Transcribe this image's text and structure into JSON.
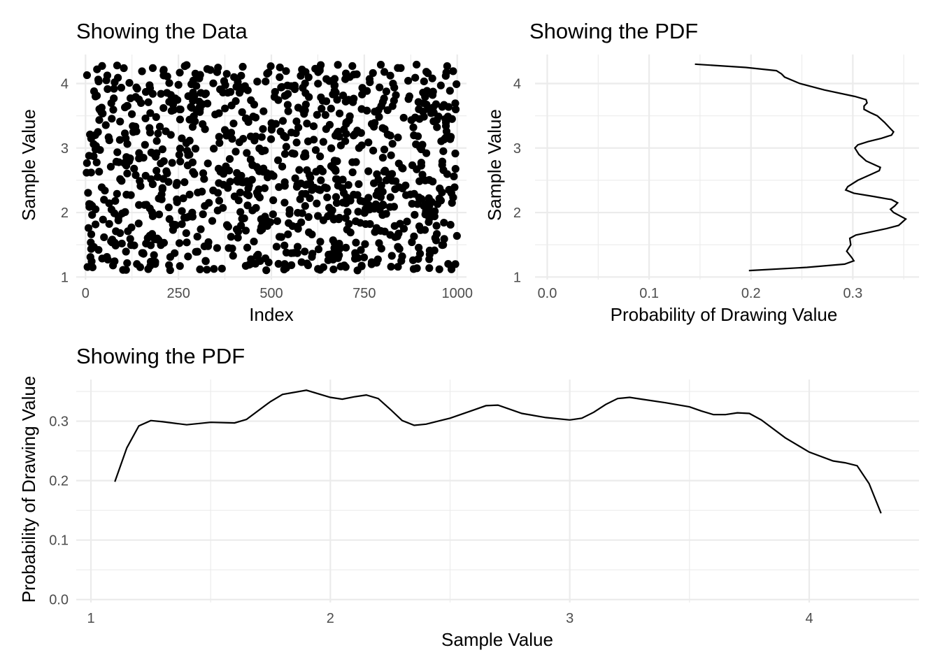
{
  "chart_data": [
    {
      "type": "scatter",
      "title": "Showing the Data",
      "xlabel": "Index",
      "ylabel": "Sample Value",
      "xlim": [
        -25,
        1025
      ],
      "ylim": [
        0.96,
        4.45
      ],
      "x_ticks": [
        0,
        250,
        500,
        750,
        1000
      ],
      "y_ticks": [
        1,
        2,
        3,
        4
      ],
      "point_count": 1000,
      "distribution": "uniform sample values between 1.1 and 4.3 plotted against index 1 to 1000",
      "points": [
        [
          4,
          4.13
        ],
        [
          8,
          1.76
        ],
        [
          12,
          3.21
        ],
        [
          15,
          2.62
        ],
        [
          19,
          1.15
        ],
        [
          23,
          3.88
        ],
        [
          27,
          2.05
        ],
        [
          31,
          4.22
        ],
        [
          35,
          1.42
        ],
        [
          39,
          2.97
        ],
        [
          43,
          3.55
        ],
        [
          47,
          1.89
        ],
        [
          52,
          2.34
        ],
        [
          56,
          4.05
        ],
        [
          60,
          1.27
        ],
        [
          64,
          3.12
        ],
        [
          68,
          2.71
        ],
        [
          72,
          1.58
        ],
        [
          76,
          3.77
        ],
        [
          80,
          2.18
        ],
        [
          85,
          4.28
        ],
        [
          89,
          1.93
        ],
        [
          93,
          3.41
        ],
        [
          97,
          2.49
        ],
        [
          101,
          1.11
        ],
        [
          106,
          3.63
        ],
        [
          110,
          2.86
        ],
        [
          114,
          1.71
        ],
        [
          118,
          4.01
        ],
        [
          122,
          2.27
        ],
        [
          127,
          3.34
        ],
        [
          131,
          1.49
        ],
        [
          135,
          2.58
        ],
        [
          139,
          3.92
        ],
        [
          143,
          1.83
        ],
        [
          148,
          2.41
        ],
        [
          152,
          4.19
        ],
        [
          156,
          1.36
        ],
        [
          160,
          3.05
        ],
        [
          164,
          2.12
        ],
        [
          169,
          3.71
        ],
        [
          173,
          1.64
        ],
        [
          177,
          2.93
        ],
        [
          181,
          4.24
        ],
        [
          186,
          1.22
        ],
        [
          190,
          3.48
        ],
        [
          194,
          2.55
        ],
        [
          198,
          1.97
        ],
        [
          203,
          3.84
        ],
        [
          207,
          2.38
        ],
        [
          211,
          1.53
        ],
        [
          216,
          3.26
        ],
        [
          220,
          4.11
        ],
        [
          224,
          2.08
        ],
        [
          228,
          1.31
        ],
        [
          233,
          2.77
        ],
        [
          237,
          3.59
        ],
        [
          241,
          1.81
        ],
        [
          246,
          2.46
        ],
        [
          250,
          3.98
        ],
        [
          254,
          1.17
        ],
        [
          259,
          3.15
        ],
        [
          263,
          2.22
        ],
        [
          267,
          4.27
        ],
        [
          271,
          1.68
        ],
        [
          276,
          2.89
        ],
        [
          280,
          3.44
        ],
        [
          284,
          1.95
        ],
        [
          289,
          2.63
        ],
        [
          293,
          3.81
        ],
        [
          297,
          1.39
        ],
        [
          302,
          2.31
        ],
        [
          306,
          4.08
        ],
        [
          310,
          1.74
        ],
        [
          315,
          3.37
        ],
        [
          319,
          2.52
        ],
        [
          323,
          1.25
        ],
        [
          328,
          3.69
        ],
        [
          332,
          2.15
        ],
        [
          336,
          4.21
        ],
        [
          341,
          1.87
        ],
        [
          345,
          2.99
        ],
        [
          349,
          3.52
        ],
        [
          354,
          1.45
        ],
        [
          358,
          2.68
        ],
        [
          362,
          3.91
        ],
        [
          367,
          1.13
        ],
        [
          371,
          2.43
        ],
        [
          375,
          3.28
        ],
        [
          380,
          4.15
        ],
        [
          384,
          1.78
        ],
        [
          388,
          2.83
        ],
        [
          393,
          3.66
        ],
        [
          397,
          1.33
        ],
        [
          401,
          2.25
        ],
        [
          406,
          3.95
        ],
        [
          410,
          1.61
        ],
        [
          414,
          3.09
        ],
        [
          419,
          2.57
        ],
        [
          423,
          4.26
        ],
        [
          427,
          1.91
        ],
        [
          432,
          3.46
        ],
        [
          436,
          2.11
        ],
        [
          440,
          1.19
        ],
        [
          445,
          3.74
        ],
        [
          449,
          2.74
        ],
        [
          453,
          1.55
        ],
        [
          458,
          3.18
        ],
        [
          462,
          4.03
        ],
        [
          466,
          2.36
        ],
        [
          471,
          1.72
        ],
        [
          475,
          2.95
        ],
        [
          479,
          3.57
        ],
        [
          484,
          1.29
        ],
        [
          488,
          2.61
        ],
        [
          492,
          4.17
        ],
        [
          497,
          1.85
        ],
        [
          501,
          3.31
        ],
        [
          505,
          2.19
        ],
        [
          510,
          3.87
        ],
        [
          514,
          1.47
        ],
        [
          518,
          2.81
        ],
        [
          523,
          4.25
        ],
        [
          527,
          1.62
        ],
        [
          531,
          3.42
        ],
        [
          536,
          2.47
        ],
        [
          540,
          1.14
        ],
        [
          544,
          3.67
        ],
        [
          549,
          2.04
        ],
        [
          553,
          3.96
        ],
        [
          557,
          1.79
        ],
        [
          562,
          2.91
        ],
        [
          566,
          3.23
        ],
        [
          570,
          1.37
        ],
        [
          575,
          2.66
        ],
        [
          579,
          4.12
        ],
        [
          583,
          1.99
        ],
        [
          588,
          3.53
        ],
        [
          592,
          2.29
        ],
        [
          596,
          1.21
        ],
        [
          601,
          3.79
        ],
        [
          605,
          2.54
        ],
        [
          609,
          1.66
        ],
        [
          614,
          3.13
        ],
        [
          618,
          4.23
        ],
        [
          622,
          2.14
        ],
        [
          627,
          1.43
        ],
        [
          631,
          2.87
        ],
        [
          635,
          3.61
        ],
        [
          640,
          1.88
        ],
        [
          644,
          2.39
        ],
        [
          648,
          4.07
        ],
        [
          653,
          1.26
        ],
        [
          657,
          3.36
        ],
        [
          661,
          2.72
        ],
        [
          666,
          1.57
        ],
        [
          670,
          3.89
        ],
        [
          674,
          2.24
        ],
        [
          679,
          4.29
        ],
        [
          683,
          1.92
        ],
        [
          687,
          3.04
        ],
        [
          692,
          2.51
        ],
        [
          696,
          1.18
        ],
        [
          700,
          3.72
        ],
        [
          705,
          2.01
        ],
        [
          709,
          3.43
        ],
        [
          713,
          1.69
        ],
        [
          718,
          2.78
        ],
        [
          722,
          4.14
        ],
        [
          726,
          1.35
        ],
        [
          731,
          3.27
        ],
        [
          735,
          2.44
        ],
        [
          739,
          1.84
        ],
        [
          744,
          3.83
        ],
        [
          748,
          2.17
        ],
        [
          752,
          1.51
        ],
        [
          757,
          3.58
        ],
        [
          761,
          2.64
        ],
        [
          765,
          4.02
        ],
        [
          770,
          1.23
        ],
        [
          774,
          2.96
        ],
        [
          778,
          3.39
        ],
        [
          783,
          1.76
        ],
        [
          787,
          2.33
        ],
        [
          791,
          3.94
        ],
        [
          796,
          1.44
        ],
        [
          800,
          2.85
        ],
        [
          804,
          4.18
        ],
        [
          809,
          1.98
        ],
        [
          813,
          3.21
        ],
        [
          817,
          2.59
        ],
        [
          822,
          1.16
        ],
        [
          826,
          3.65
        ],
        [
          830,
          2.09
        ],
        [
          835,
          3.82
        ],
        [
          839,
          1.63
        ],
        [
          843,
          2.76
        ],
        [
          848,
          4.24
        ],
        [
          852,
          1.32
        ],
        [
          856,
          3.47
        ],
        [
          861,
          2.42
        ],
        [
          865,
          1.86
        ],
        [
          869,
          3.76
        ],
        [
          874,
          2.28
        ],
        [
          878,
          1.54
        ],
        [
          882,
          3.32
        ],
        [
          887,
          4.09
        ],
        [
          891,
          2.67
        ],
        [
          895,
          1.28
        ],
        [
          900,
          3.01
        ],
        [
          904,
          2.21
        ],
        [
          908,
          3.86
        ],
        [
          913,
          1.73
        ],
        [
          917,
          2.92
        ],
        [
          921,
          4.16
        ],
        [
          926,
          1.41
        ],
        [
          930,
          3.54
        ],
        [
          934,
          2.48
        ],
        [
          939,
          1.94
        ],
        [
          943,
          3.68
        ],
        [
          947,
          2.13
        ],
        [
          952,
          1.12
        ],
        [
          956,
          3.97
        ],
        [
          960,
          2.79
        ],
        [
          965,
          1.59
        ],
        [
          969,
          3.16
        ],
        [
          973,
          4.27
        ],
        [
          978,
          2.35
        ],
        [
          982,
          1.81
        ],
        [
          986,
          3.45
        ],
        [
          991,
          2.56
        ],
        [
          995,
          1.2
        ],
        [
          998,
          3.99
        ]
      ]
    },
    {
      "type": "line",
      "title": "Showing the PDF",
      "xlabel": "Probability of Drawing Value",
      "ylabel": "Sample Value",
      "xlim": [
        -0.012,
        0.365
      ],
      "ylim": [
        0.96,
        4.45
      ],
      "x_ticks": [
        "0.0",
        "0.1",
        "0.2",
        "0.3"
      ],
      "y_ticks": [
        1,
        2,
        3,
        4
      ],
      "orientation": "density on x axis, sample value on y axis"
    },
    {
      "type": "line",
      "title": "Showing the PDF",
      "xlabel": "Sample Value",
      "ylabel": "Probability of Drawing Value",
      "xlim": [
        1.0,
        4.45
      ],
      "ylim": [
        -0.005,
        0.37
      ],
      "x_ticks": [
        1,
        2,
        3,
        4
      ],
      "y_ticks": [
        "0.0",
        "0.1",
        "0.2",
        "0.3"
      ],
      "x": [
        1.1,
        1.15,
        1.2,
        1.25,
        1.3,
        1.4,
        1.5,
        1.6,
        1.65,
        1.7,
        1.75,
        1.8,
        1.9,
        2.0,
        2.05,
        2.1,
        2.15,
        2.2,
        2.25,
        2.3,
        2.35,
        2.4,
        2.5,
        2.6,
        2.65,
        2.7,
        2.8,
        2.9,
        3.0,
        3.05,
        3.1,
        3.15,
        3.2,
        3.25,
        3.3,
        3.4,
        3.5,
        3.55,
        3.6,
        3.65,
        3.7,
        3.75,
        3.8,
        3.9,
        4.0,
        4.1,
        4.15,
        4.2,
        4.25,
        4.3
      ],
      "y": [
        0.198,
        0.255,
        0.292,
        0.301,
        0.299,
        0.294,
        0.298,
        0.297,
        0.303,
        0.318,
        0.333,
        0.345,
        0.352,
        0.34,
        0.337,
        0.341,
        0.344,
        0.338,
        0.32,
        0.301,
        0.293,
        0.295,
        0.305,
        0.319,
        0.326,
        0.327,
        0.313,
        0.306,
        0.302,
        0.305,
        0.315,
        0.328,
        0.338,
        0.34,
        0.337,
        0.331,
        0.324,
        0.317,
        0.311,
        0.311,
        0.314,
        0.313,
        0.302,
        0.272,
        0.248,
        0.233,
        0.23,
        0.225,
        0.195,
        0.145
      ]
    }
  ]
}
